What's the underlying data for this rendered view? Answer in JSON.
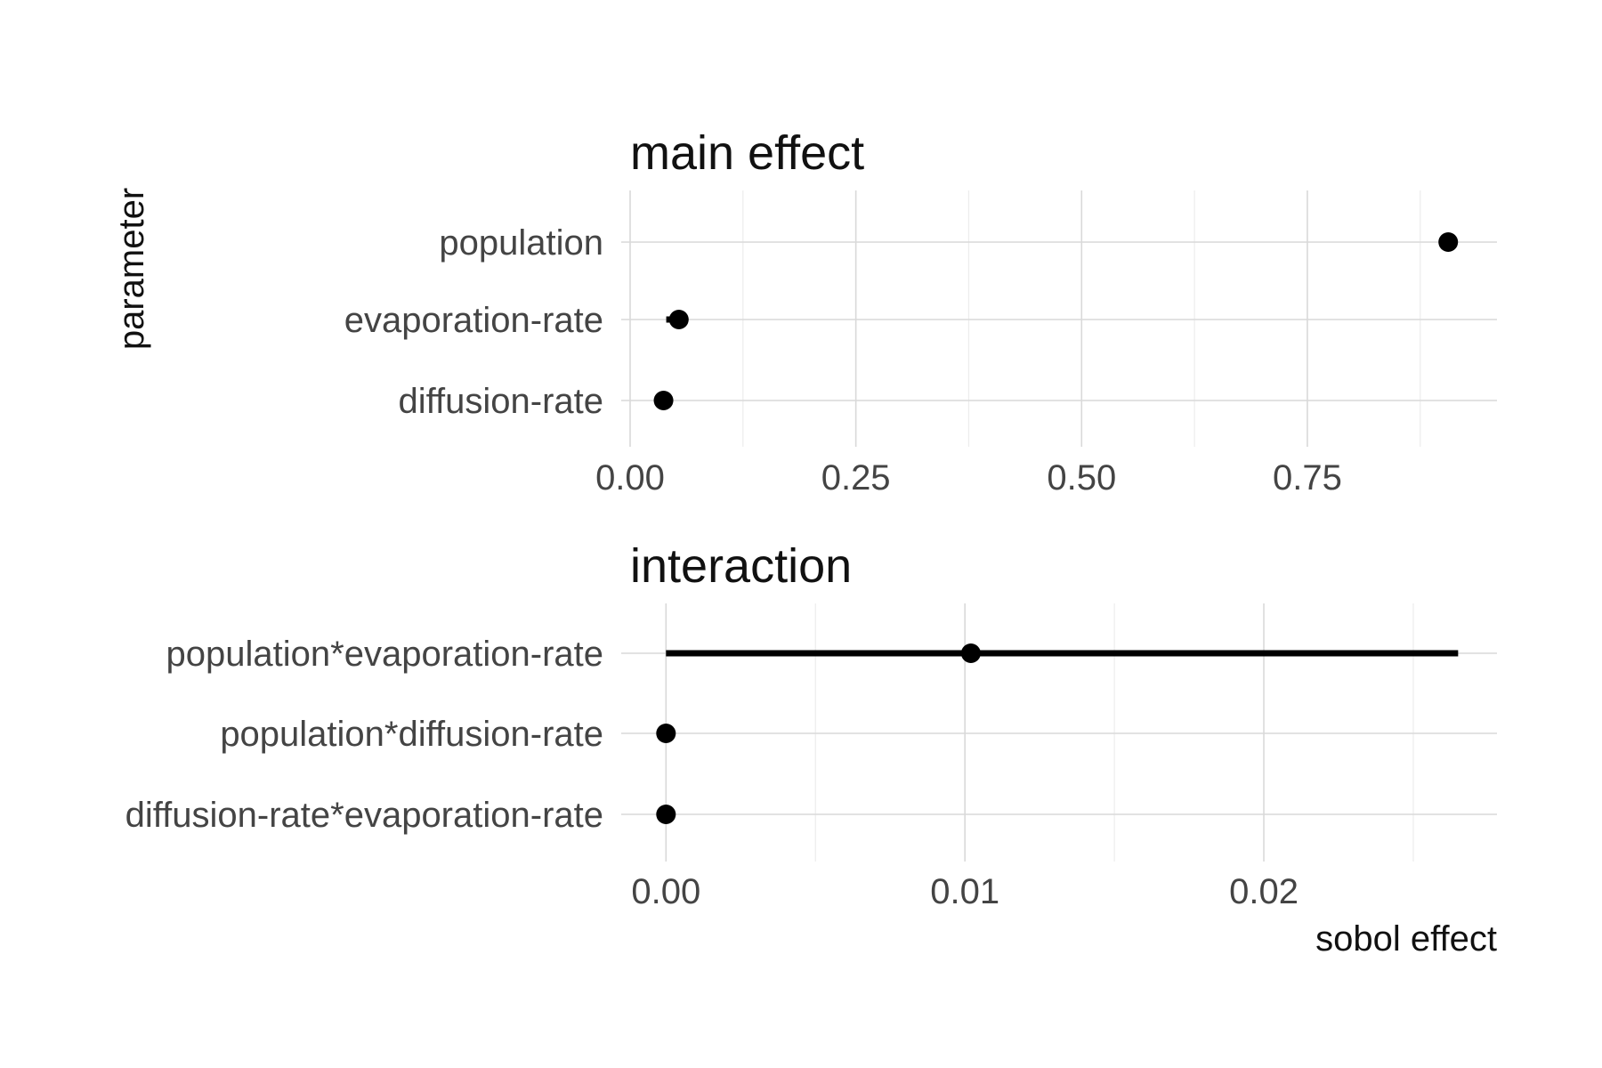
{
  "chart_data": {
    "type": "scatter",
    "ylabel": "parameter",
    "xlabel": "sobol effect",
    "colors": {
      "marks": "#000000",
      "grid": "#d9d9d9",
      "text": "#444444"
    },
    "panels": [
      {
        "title": "main effect",
        "categories": [
          "population",
          "evaporation-rate",
          "diffusion-rate"
        ],
        "values": [
          0.906,
          0.054,
          0.037
        ],
        "ci_low": [
          0.901,
          0.04,
          0.03
        ],
        "ci_high": [
          0.911,
          0.064,
          0.044
        ],
        "xlim": [
          0.0,
          0.96
        ],
        "ticks": [
          0.0,
          0.25,
          0.5,
          0.75
        ],
        "tick_labels": [
          "0.00",
          "0.25",
          "0.50",
          "0.75"
        ]
      },
      {
        "title": "interaction",
        "categories": [
          "population*evaporation-rate",
          "population*diffusion-rate",
          "diffusion-rate*evaporation-rate"
        ],
        "values": [
          0.0102,
          0.0,
          0.0
        ],
        "ci_low": [
          0.0,
          0.0,
          0.0
        ],
        "ci_high": [
          0.0265,
          0.0,
          0.0
        ],
        "xlim": [
          -0.0012,
          0.0278
        ],
        "ticks": [
          0.0,
          0.01,
          0.02
        ],
        "tick_labels": [
          "0.00",
          "0.01",
          "0.02"
        ]
      }
    ],
    "grid": true,
    "legend": "none"
  }
}
